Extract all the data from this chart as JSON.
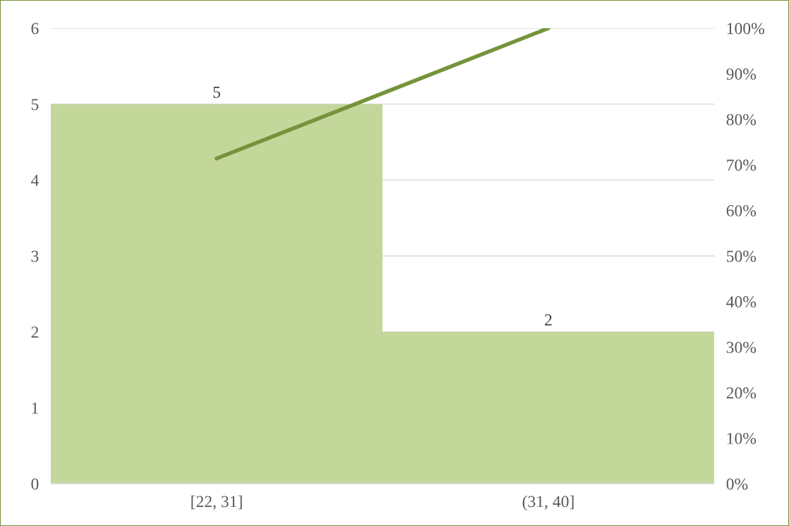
{
  "chart_data": {
    "type": "bar",
    "categories": [
      "[22, 31]",
      "(31, 40]"
    ],
    "series": [
      {
        "color": "#c4d79b",
        "values": [
          5,
          2
        ],
        "value_labels": [
          "5",
          "2"
        ]
      },
      {
        "type": "line",
        "axis": "y2",
        "color": "#76933c",
        "values": [
          71.4,
          100
        ]
      }
    ],
    "ylim": [
      0,
      6
    ],
    "yticks": [
      0,
      1,
      2,
      3,
      4,
      5,
      6
    ],
    "y2lim": [
      0,
      100
    ],
    "y2ticks": [
      {
        "value": 0,
        "label": "0%"
      },
      {
        "value": 10,
        "label": "10%"
      },
      {
        "value": 20,
        "label": "20%"
      },
      {
        "value": 30,
        "label": "30%"
      },
      {
        "value": 40,
        "label": "40%"
      },
      {
        "value": 50,
        "label": "50%"
      },
      {
        "value": 60,
        "label": "60%"
      },
      {
        "value": 70,
        "label": "70%"
      },
      {
        "value": 80,
        "label": "80%"
      },
      {
        "value": 90,
        "label": "90%"
      },
      {
        "value": 100,
        "label": "100%"
      }
    ],
    "grid": "y",
    "marker": "none",
    "line_style": "solid"
  }
}
